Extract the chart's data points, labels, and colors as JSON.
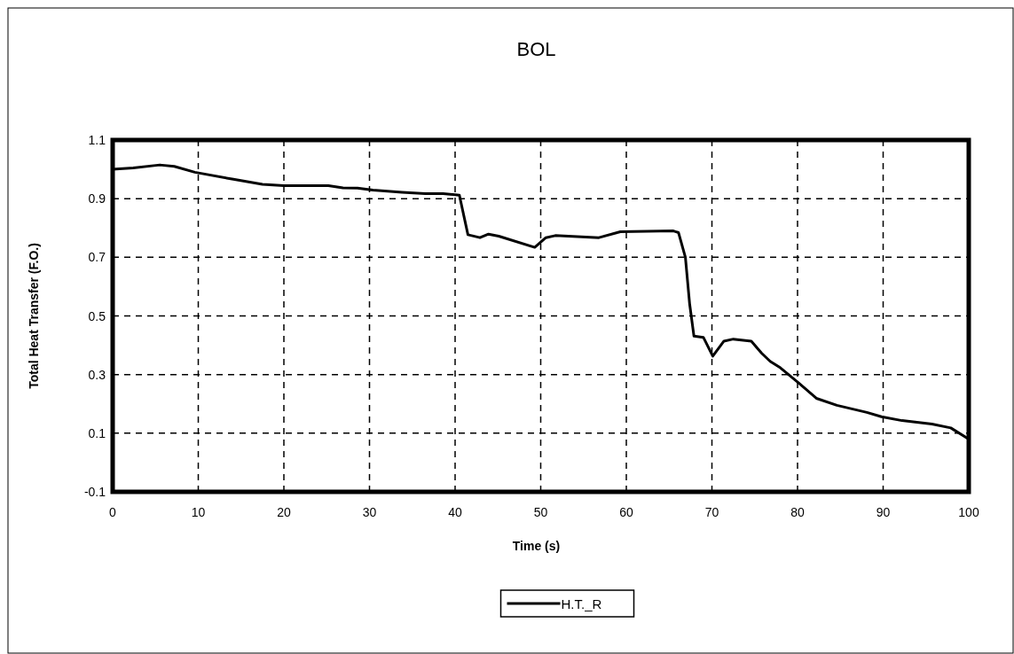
{
  "chart_data": {
    "type": "line",
    "title": "BOL",
    "xlabel": "Time (s)",
    "ylabel": "Total Heat Transfer (F.O.)",
    "xlim": [
      0,
      100
    ],
    "xticks": [
      0,
      10,
      20,
      30,
      40,
      50,
      60,
      70,
      80,
      90,
      100
    ],
    "ylim": [
      -0.1,
      1.1
    ],
    "yticks": [
      -0.1,
      0.1,
      0.3,
      0.5,
      0.7,
      0.9,
      1.1
    ],
    "grid": true,
    "legend": "bottom",
    "line_style": "solid",
    "marker": "none",
    "series": [
      {
        "name": "H.T._R",
        "color": "#000000",
        "x": [
          0,
          2.4,
          5.5,
          7.2,
          9.6,
          14.1,
          17.5,
          20,
          25.2,
          26.9,
          28.6,
          30.4,
          33.8,
          36.5,
          38.6,
          40.5,
          41.5,
          42.9,
          43.9,
          45.1,
          49.3,
          50.6,
          51.7,
          56.8,
          59.3,
          65.5,
          66.1,
          66.9,
          67.4,
          67.9,
          69,
          70.1,
          71.4,
          72.5,
          74.6,
          75.8,
          76.8,
          78,
          80.1,
          82.2,
          84.6,
          88.1,
          89.8,
          92.2,
          95.7,
          97.9,
          100
        ],
        "values": [
          1.0,
          1.005,
          1.015,
          1.01,
          0.99,
          0.966,
          0.949,
          0.944,
          0.944,
          0.937,
          0.936,
          0.929,
          0.922,
          0.917,
          0.917,
          0.912,
          0.777,
          0.767,
          0.779,
          0.772,
          0.734,
          0.767,
          0.774,
          0.767,
          0.787,
          0.79,
          0.784,
          0.7,
          0.54,
          0.431,
          0.427,
          0.363,
          0.414,
          0.421,
          0.414,
          0.373,
          0.345,
          0.323,
          0.272,
          0.219,
          0.195,
          0.171,
          0.156,
          0.143,
          0.131,
          0.118,
          0.08
        ]
      }
    ]
  }
}
